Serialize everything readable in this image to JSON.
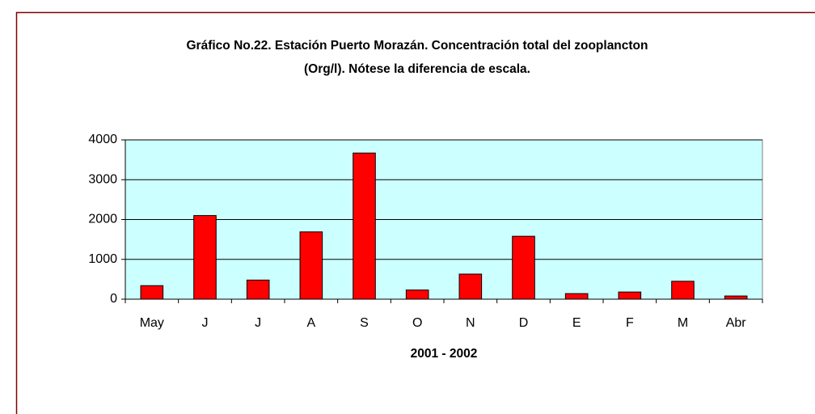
{
  "chart_data": {
    "type": "bar",
    "title": [
      "Gráfico No.22. Estación Puerto Morazán. Concentración total del zooplancton",
      "(Org/l). Nótese la diferencia de escala."
    ],
    "x_label": "2001 - 2002",
    "categories": [
      "May",
      "J",
      "J",
      "A",
      "S",
      "O",
      "N",
      "D",
      "E",
      "F",
      "M",
      "Abr"
    ],
    "values": [
      340,
      2100,
      480,
      1690,
      3670,
      230,
      630,
      1580,
      140,
      180,
      450,
      80
    ],
    "color": "#ff0000",
    "ylim": [
      0,
      4000
    ],
    "yticks": [
      0,
      1000,
      2000,
      3000,
      4000
    ],
    "grid": true
  }
}
